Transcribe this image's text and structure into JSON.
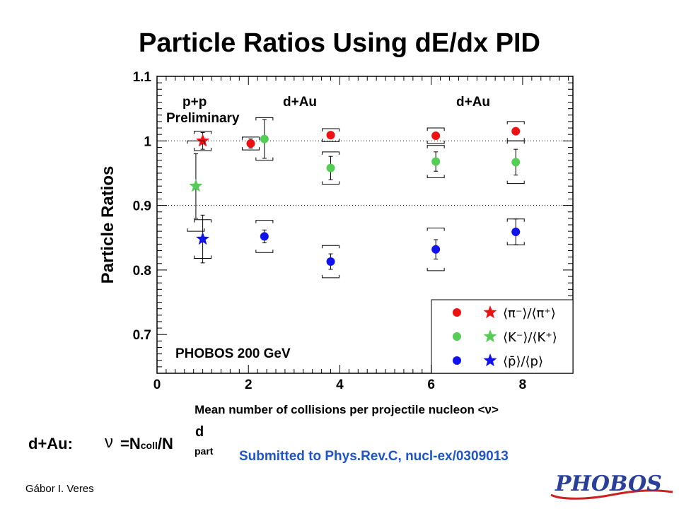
{
  "title": "Particle Ratios Using dE/dx PID",
  "chart_data": {
    "type": "scatter",
    "xlabel": "Mean number of collisions per projectile nucleon <ν>",
    "ylabel": "Particle Ratios",
    "xlim": [
      0,
      9.1
    ],
    "ylim": [
      0.64,
      1.1
    ],
    "xticks": [
      "0",
      "2",
      "4",
      "6",
      "8"
    ],
    "yticks": [
      "0.7",
      "0.8",
      "0.9",
      "1",
      "1.1"
    ],
    "reference_lines_y": [
      1.0,
      0.9
    ],
    "annotations": [
      "p+p",
      "Preliminary",
      "d+Au",
      "d+Au",
      "PHOBOS 200 GeV"
    ],
    "series": [
      {
        "color": "#ee1111",
        "marker": "star",
        "points": [
          {
            "x": 1.0,
            "y": 1.0,
            "stat": 0.013,
            "sys": 0.015
          }
        ]
      },
      {
        "color": "#55cc55",
        "marker": "star",
        "points": [
          {
            "x": 0.85,
            "y": 0.93,
            "stat": 0.05,
            "sys": 0.07
          }
        ]
      },
      {
        "color": "#1111ee",
        "marker": "star",
        "points": [
          {
            "x": 1.0,
            "y": 0.848,
            "stat": 0.037,
            "sys": 0.03
          }
        ]
      },
      {
        "color": "#ee1111",
        "marker": "circle",
        "points": [
          {
            "x": 2.05,
            "y": 0.996,
            "stat": 0.007,
            "sys": 0.01
          },
          {
            "x": 3.8,
            "y": 1.009,
            "stat": 0.004,
            "sys": 0.01
          },
          {
            "x": 6.1,
            "y": 1.008,
            "stat": 0.005,
            "sys": 0.012
          },
          {
            "x": 7.85,
            "y": 1.015,
            "stat": 0.005,
            "sys": 0.015
          }
        ]
      },
      {
        "color": "#55cc55",
        "marker": "circle",
        "points": [
          {
            "x": 2.35,
            "y": 1.003,
            "stat": 0.03,
            "sys": 0.033
          },
          {
            "x": 3.8,
            "y": 0.958,
            "stat": 0.018,
            "sys": 0.025
          },
          {
            "x": 6.1,
            "y": 0.968,
            "stat": 0.015,
            "sys": 0.025
          },
          {
            "x": 7.85,
            "y": 0.967,
            "stat": 0.02,
            "sys": 0.033
          }
        ]
      },
      {
        "color": "#1111ee",
        "marker": "circle",
        "points": [
          {
            "x": 2.35,
            "y": 0.852,
            "stat": 0.01,
            "sys": 0.025
          },
          {
            "x": 3.8,
            "y": 0.813,
            "stat": 0.012,
            "sys": 0.025
          },
          {
            "x": 6.1,
            "y": 0.832,
            "stat": 0.015,
            "sys": 0.033
          },
          {
            "x": 7.85,
            "y": 0.859,
            "stat": 0.02,
            "sys": 0.02
          }
        ]
      }
    ],
    "legend": {
      "placement": "bottom-right",
      "entries": [
        {
          "color": "#ee1111",
          "text": "⟨π⁻⟩/⟨π⁺⟩"
        },
        {
          "color": "#55cc55",
          "text": "⟨K⁻⟩/⟨K⁺⟩"
        },
        {
          "color": "#1111ee",
          "text": "⟨p̄⟩/⟨p⟩"
        }
      ]
    }
  },
  "formula": {
    "label": "d+Au:",
    "nu": "ν",
    "eq": "=N",
    "coll": "coll",
    "slash": "/N",
    "d": "d",
    "part": "part"
  },
  "submitted": "Submitted to Phys.Rev.C, nucl-ex/0309013",
  "author": "Gábor I. Veres",
  "logo": {
    "text": "PHOBOS"
  }
}
